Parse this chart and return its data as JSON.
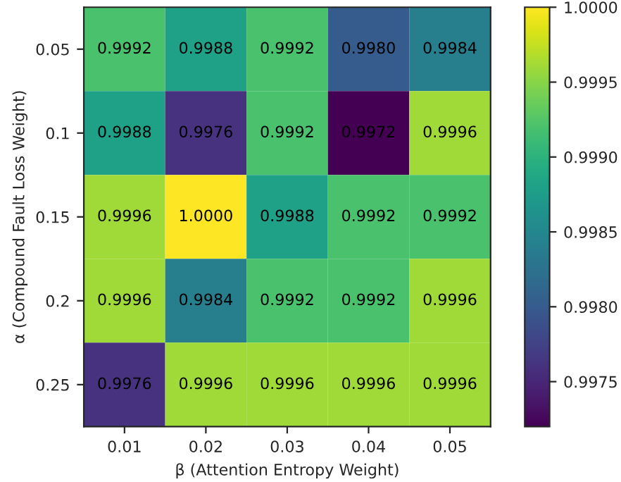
{
  "chart_data": {
    "type": "heatmap",
    "xlabel": "β (Attention Entropy Weight)",
    "ylabel": "α (Compound Fault Loss Weight)",
    "categories": [
      "0.01",
      "0.02",
      "0.03",
      "0.04",
      "0.05"
    ],
    "y_categories": [
      "0.05",
      "0.1",
      "0.15",
      "0.2",
      "0.25"
    ],
    "cells": [
      [
        0.9992,
        0.9988,
        0.9992,
        0.998,
        0.9984
      ],
      [
        0.9988,
        0.9976,
        0.9992,
        0.9972,
        0.9996
      ],
      [
        0.9996,
        1.0,
        0.9988,
        0.9992,
        0.9992
      ],
      [
        0.9996,
        0.9984,
        0.9992,
        0.9992,
        0.9996
      ],
      [
        0.9976,
        0.9996,
        0.9996,
        0.9996,
        0.9996
      ]
    ],
    "cell_labels": [
      [
        "0.9992",
        "0.9988",
        "0.9992",
        "0.9980",
        "0.9984"
      ],
      [
        "0.9988",
        "0.9976",
        "0.9992",
        "0.9972",
        "0.9996"
      ],
      [
        "0.9996",
        "1.0000",
        "0.9988",
        "0.9992",
        "0.9992"
      ],
      [
        "0.9996",
        "0.9984",
        "0.9992",
        "0.9992",
        "0.9996"
      ],
      [
        "0.9976",
        "0.9996",
        "0.9996",
        "0.9996",
        "0.9996"
      ]
    ],
    "clim": [
      0.9972,
      1.0
    ],
    "cticks": [
      {
        "value": 0.9975,
        "label": "0.9975"
      },
      {
        "value": 0.998,
        "label": "0.9980"
      },
      {
        "value": 0.9985,
        "label": "0.9985"
      },
      {
        "value": 0.999,
        "label": "0.9990"
      },
      {
        "value": 0.9995,
        "label": "0.9995"
      },
      {
        "value": 1.0,
        "label": "1.0000"
      }
    ]
  }
}
